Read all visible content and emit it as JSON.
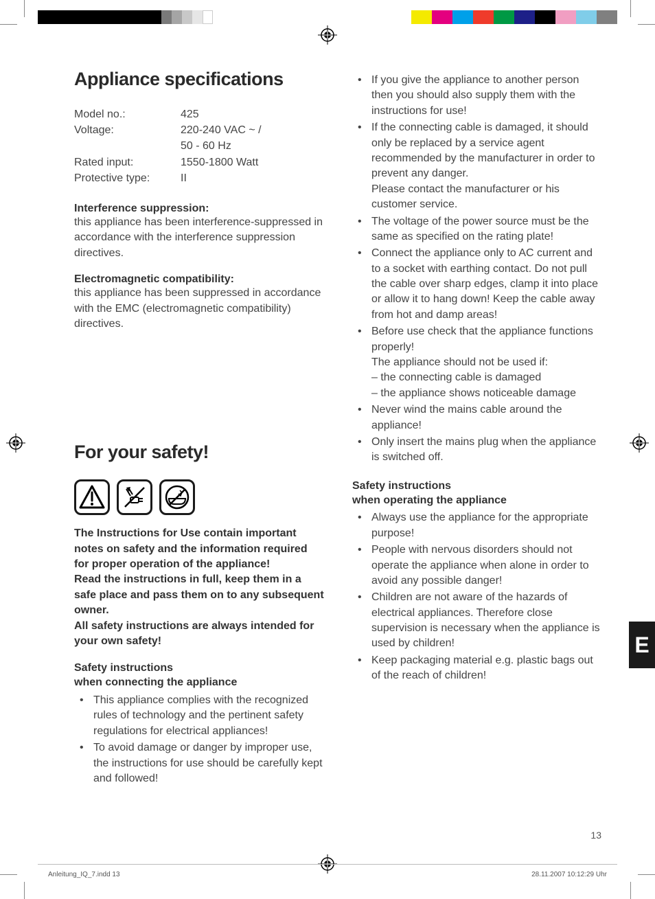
{
  "colorbar": {
    "left": [
      "#000000",
      "#000000",
      "#000000",
      "#000000",
      "#000000",
      "#000000",
      "#7a7a7a",
      "#a5a5a5",
      "#c8c8c8",
      "#e6e6e6",
      "#ffffff"
    ],
    "right": [
      "#f4ea00",
      "#e4007f",
      "#00a0e9",
      "#ef3b2b",
      "#009944",
      "#1d2088",
      "#000000",
      "#f19ec2",
      "#80cde9",
      "#808080"
    ]
  },
  "headings": {
    "specs": "Appliance specifications",
    "safety": "For your safety!"
  },
  "specs": {
    "model_label": "Model no.:",
    "model_value": "425",
    "voltage_label": "Voltage:",
    "voltage_value": "220-240 VAC ~ /",
    "voltage_value2": "50 - 60 Hz",
    "rated_label": "Rated input:",
    "rated_value": "1550-1800 Watt",
    "protective_label": "Protective type:",
    "protective_value": "II"
  },
  "interference": {
    "label": "Interference suppression:",
    "body": "this appliance has been interference-suppressed in accordance with the interference suppression directives."
  },
  "emc": {
    "label": "Electromagnetic compatibility:",
    "body": "this appliance has been suppressed in accordance with the EMC (electromagnetic compatibility) directives."
  },
  "intro_bold": "The Instructions for Use contain important notes on safety and the information required for proper operation of the appliance!\nRead the instructions in full, keep them in a safe place and pass them on to any subsequent owner.\nAll safety instructions are always intended for your own safety!",
  "connect": {
    "heading_l1": "Safety instructions",
    "heading_l2": "when connecting the appliance",
    "items": [
      "This appliance complies with the recognized rules of technology and the pertinent safety regulations for electrical appliances!",
      "To avoid damage or danger by improper use, the instructions for use should be carefully kept and followed!",
      "If you give the appliance to another person then you should also supply them with the instructions for use!",
      "If the connecting cable is damaged, it should only be replaced by a service agent recommended by the manufacturer in order to prevent any danger.\nPlease contact the manufacturer or his customer service.",
      "The voltage of the power source must be the same as specified on the rating plate!",
      "Connect the appliance only to AC current and to a socket with earthing contact. Do not pull the cable over sharp edges, clamp it into place or allow it to hang down! Keep the cable away from hot and damp areas!",
      "Before use check that the appliance functions properly!\nThe appliance should not be used if:\n– the connecting cable is damaged\n– the appliance shows noticeable damage",
      "Never wind the mains cable around the appliance!",
      "Only insert the mains plug when the appliance is switched off."
    ]
  },
  "operate": {
    "heading_l1": "Safety instructions",
    "heading_l2": "when operating the appliance",
    "items": [
      "Always use the appliance for the appropriate purpose!",
      "People with nervous disorders should not operate the appliance when alone in order to avoid any possible danger!",
      "Children are not aware of the hazards of electrical appliances. Therefore close supervision is necessary when the appliance is used by children!",
      "Keep packaging material e.g. plastic bags out of the reach of children!"
    ]
  },
  "lang_tab": "E",
  "page_number": "13",
  "footer": {
    "left": "Anleitung_IQ_7.indd   13",
    "right": "28.11.2007   10:12:29 Uhr"
  }
}
